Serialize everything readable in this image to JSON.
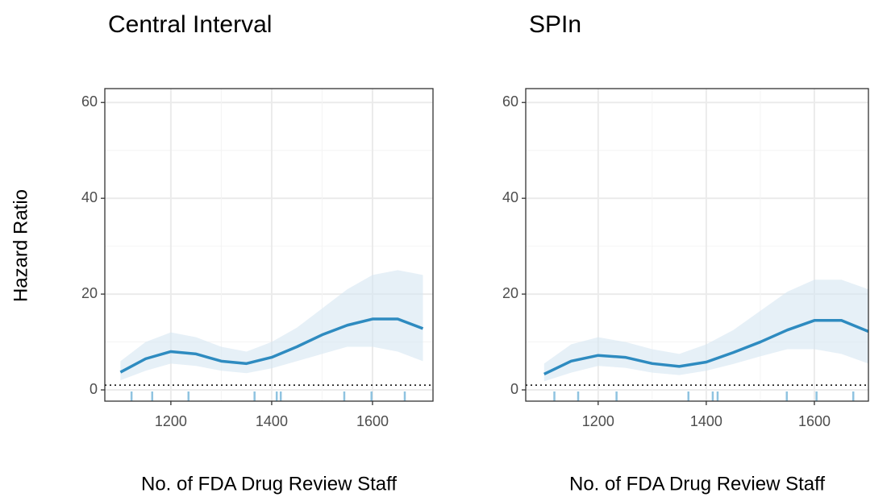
{
  "chart_data": [
    {
      "type": "line",
      "title": "Central Interval",
      "xlabel": "No. of FDA Drug Review Staff",
      "ylabel": "Hazard Ratio",
      "x": [
        1100,
        1150,
        1200,
        1250,
        1300,
        1350,
        1400,
        1450,
        1500,
        1550,
        1600,
        1650,
        1700
      ],
      "series": [
        {
          "color": "#2e8bc0",
          "values": [
            3.7,
            6.5,
            8,
            7.5,
            6,
            5.5,
            6.8,
            9,
            11.5,
            13.5,
            14.8,
            14.8,
            12.8
          ]
        }
      ],
      "band": {
        "color": "#d6e6f2",
        "lower": [
          2,
          4,
          5.5,
          5,
          4,
          3.5,
          4.5,
          6,
          7.5,
          9,
          9,
          8,
          6
        ],
        "upper": [
          6,
          10,
          12,
          11,
          9,
          8,
          10,
          13,
          17,
          21,
          24,
          25,
          24
        ]
      },
      "reference": 1,
      "rug": [
        1122,
        1163,
        1235,
        1366,
        1410,
        1418,
        1544,
        1598,
        1664
      ],
      "xlim": [
        1069,
        1720
      ],
      "ylim": [
        -2.35,
        62.9
      ],
      "xticks": [
        1200,
        1400,
        1600
      ],
      "yticks": [
        0,
        20,
        40,
        60
      ],
      "grid": true
    },
    {
      "type": "line",
      "title": "SPIn",
      "xlabel": "No. of FDA Drug Review Staff",
      "x": [
        1100,
        1150,
        1200,
        1250,
        1300,
        1350,
        1400,
        1450,
        1500,
        1550,
        1600,
        1650,
        1700
      ],
      "series": [
        {
          "color": "#2e8bc0",
          "values": [
            3.3,
            6,
            7.2,
            6.8,
            5.5,
            4.9,
            5.8,
            7.8,
            10,
            12.5,
            14.5,
            14.5,
            12.2
          ]
        }
      ],
      "band": {
        "color": "#d6e6f2",
        "lower": [
          1.8,
          3.6,
          5,
          4.6,
          3.6,
          3.1,
          4,
          5.4,
          7,
          8.5,
          8.5,
          7.5,
          5.5
        ],
        "upper": [
          5.5,
          9.5,
          11,
          10,
          8.5,
          7.5,
          9.5,
          12.5,
          16.5,
          20.5,
          23,
          23,
          21
        ]
      },
      "reference": 1,
      "rug": [
        1119,
        1163,
        1234,
        1367,
        1412,
        1421,
        1549,
        1604,
        1672
      ],
      "xlim": [
        1066,
        1700
      ],
      "ylim": [
        -2.35,
        62.9
      ],
      "xticks": [
        1200,
        1400,
        1600
      ],
      "yticks": [
        0,
        20,
        40,
        60
      ],
      "grid": true
    }
  ]
}
